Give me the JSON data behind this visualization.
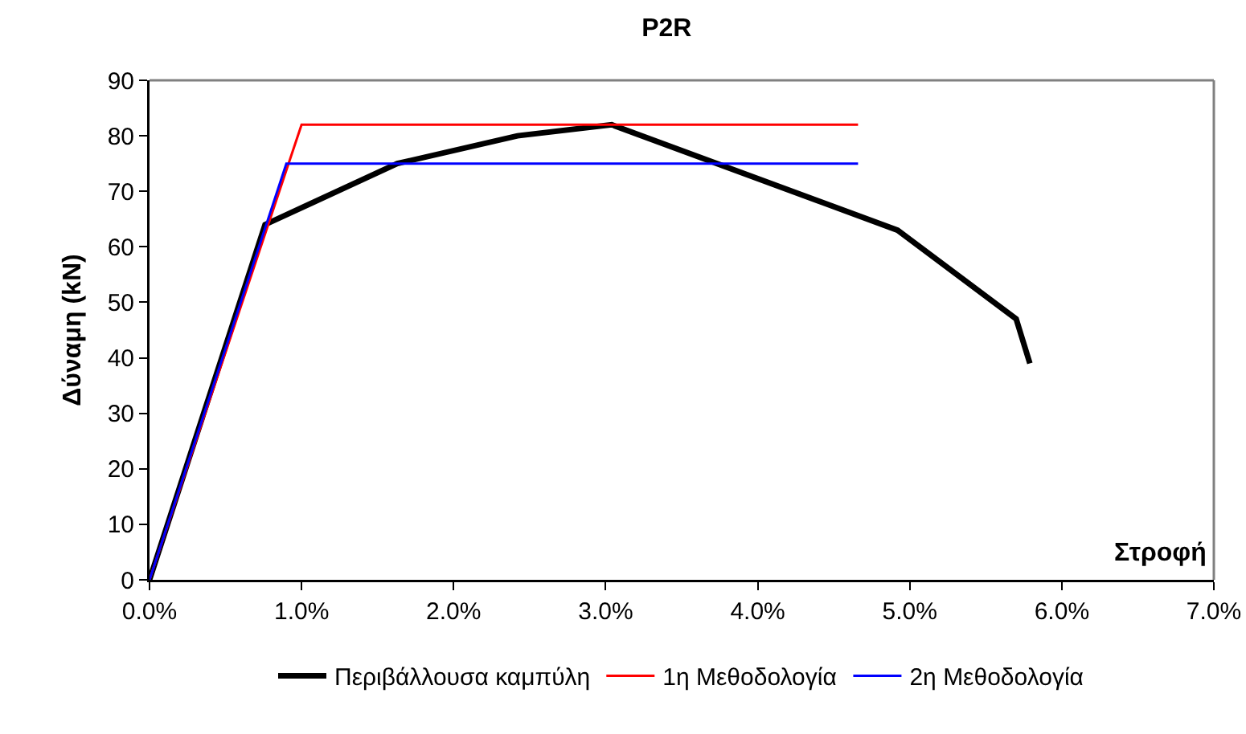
{
  "chart_data": {
    "type": "line",
    "title": "P2R",
    "xlabel": "Στροφή",
    "ylabel": "Δύναμη (kN)",
    "series": [
      {
        "name": "Περιβάλλουσα καμπύλη",
        "color": "#000000",
        "x": [
          0,
          0.76,
          1.63,
          2.42,
          3.04,
          4.92,
          5.7,
          5.79
        ],
        "values": [
          0,
          64,
          75,
          80,
          82,
          63,
          47,
          39
        ]
      },
      {
        "name": "1η Μεθοδολογία",
        "color": "#ff0000",
        "x": [
          0,
          1.0,
          4.66
        ],
        "values": [
          0,
          82,
          82
        ]
      },
      {
        "name": "2η Μεθοδολογία",
        "color": "#0000ff",
        "x": [
          0,
          0.9,
          4.66
        ],
        "values": [
          0,
          75,
          75
        ]
      }
    ],
    "xlim": [
      0,
      7
    ],
    "xticks": [
      {
        "value": 0,
        "label": "0.0%"
      },
      {
        "value": 1,
        "label": "1.0%"
      },
      {
        "value": 2,
        "label": "2.0%"
      },
      {
        "value": 3,
        "label": "3.0%"
      },
      {
        "value": 4,
        "label": "4.0%"
      },
      {
        "value": 5,
        "label": "5.0%"
      },
      {
        "value": 6,
        "label": "6.0%"
      },
      {
        "value": 7,
        "label": "7.0%"
      }
    ],
    "ylim": [
      0,
      90
    ],
    "yticks": [
      0,
      10,
      20,
      30,
      40,
      50,
      60,
      70,
      80,
      90
    ],
    "grid": false,
    "legend": "bottom",
    "marker": "none",
    "line_style": "solid"
  }
}
